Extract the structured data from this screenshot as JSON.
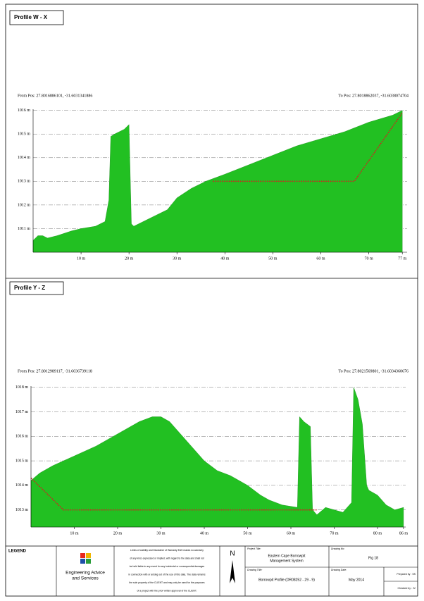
{
  "chart_data": [
    {
      "type": "area",
      "title": "Profile W - X",
      "from_pos": "From Pos: 27.8016886101, -31.6031341886",
      "to_pos": "To Pos: 27.8018862037, -31.6038074704",
      "xlim": [
        0,
        78
      ],
      "ylim": [
        1010,
        1016.05
      ],
      "xticks": [
        {
          "value": 10,
          "label": "10 m"
        },
        {
          "value": 20,
          "label": "20 m"
        },
        {
          "value": 30,
          "label": "30 m"
        },
        {
          "value": 40,
          "label": "40 m"
        },
        {
          "value": 50,
          "label": "50 m"
        },
        {
          "value": 60,
          "label": "60 m"
        },
        {
          "value": 70,
          "label": "70 m"
        },
        {
          "value": 77,
          "label": "77 m"
        }
      ],
      "yticks": [
        {
          "value": 1011,
          "label": "1011 m"
        },
        {
          "value": 1012,
          "label": "1012 m"
        },
        {
          "value": 1013,
          "label": "1013 m"
        },
        {
          "value": 1014,
          "label": "1014 m"
        },
        {
          "value": 1015,
          "label": "1015 m"
        },
        {
          "value": 1016,
          "label": "1016 m"
        }
      ],
      "grid": true,
      "series": [
        {
          "style": "area",
          "color": "#22c022",
          "x": [
            0,
            1,
            2,
            3,
            5,
            8,
            10,
            13,
            15,
            15.8,
            16.2,
            17,
            18,
            19,
            20,
            20.5,
            21,
            22,
            25,
            28,
            30,
            33,
            36,
            40,
            45,
            50,
            55,
            60,
            65,
            70,
            75,
            77
          ],
          "values": [
            1010.5,
            1010.7,
            1010.7,
            1010.6,
            1010.7,
            1010.9,
            1011.0,
            1011.1,
            1011.3,
            1012.2,
            1014.9,
            1015.0,
            1015.1,
            1015.2,
            1015.4,
            1011.2,
            1011.1,
            1011.2,
            1011.5,
            1011.8,
            1012.3,
            1012.7,
            1013.0,
            1013.3,
            1013.7,
            1014.1,
            1014.5,
            1014.8,
            1015.1,
            1015.5,
            1015.8,
            1016.0
          ]
        },
        {
          "style": "dotted",
          "color": "#d42020",
          "x": [
            37.5,
            67,
            77
          ],
          "values": [
            1013.0,
            1013.0,
            1015.9
          ]
        }
      ]
    },
    {
      "type": "area",
      "title": "Profile Y - Z",
      "from_pos": "From Pos: 27.8012989117, -31.6036739118",
      "to_pos": "To Pos: 27.8021569801, -31.6034360676",
      "xlim": [
        0,
        86.5
      ],
      "ylim": [
        1012.3,
        1018.05
      ],
      "xticks": [
        {
          "value": 10,
          "label": "10 m"
        },
        {
          "value": 20,
          "label": "20 m"
        },
        {
          "value": 30,
          "label": "30 m"
        },
        {
          "value": 40,
          "label": "40 m"
        },
        {
          "value": 50,
          "label": "50 m"
        },
        {
          "value": 60,
          "label": "60 m"
        },
        {
          "value": 70,
          "label": "70 m"
        },
        {
          "value": 80,
          "label": "80 m"
        },
        {
          "value": 86,
          "label": "86 m"
        }
      ],
      "yticks": [
        {
          "value": 1013,
          "label": "1013 m"
        },
        {
          "value": 1014,
          "label": "1014 m"
        },
        {
          "value": 1015,
          "label": "1015 m"
        },
        {
          "value": 1016,
          "label": "1016 m"
        },
        {
          "value": 1017,
          "label": "1017 m"
        },
        {
          "value": 1018,
          "label": "1018 m"
        }
      ],
      "grid": true,
      "series": [
        {
          "style": "area",
          "color": "#22c022",
          "x": [
            0,
            2,
            5,
            10,
            15,
            20,
            25,
            28,
            30,
            32,
            35,
            38,
            40,
            43,
            46,
            48,
            50,
            53,
            55,
            58,
            61.5,
            62,
            63,
            64.5,
            65,
            66,
            68,
            70,
            72,
            74,
            74.5,
            75.5,
            76.5,
            77.5,
            78,
            80,
            82,
            84,
            86
          ],
          "values": [
            1014.2,
            1014.5,
            1014.8,
            1015.2,
            1015.6,
            1016.1,
            1016.6,
            1016.8,
            1016.8,
            1016.6,
            1016.0,
            1015.4,
            1015.0,
            1014.6,
            1014.4,
            1014.2,
            1014.0,
            1013.6,
            1013.4,
            1013.2,
            1013.1,
            1016.8,
            1016.6,
            1016.4,
            1013.0,
            1012.8,
            1013.1,
            1013.0,
            1012.9,
            1013.3,
            1018.0,
            1017.5,
            1016.5,
            1014.0,
            1013.8,
            1013.6,
            1013.2,
            1013.0,
            1013.1
          ]
        },
        {
          "style": "dotted",
          "color": "#d42020",
          "x": [
            0,
            7.5,
            66
          ],
          "values": [
            1014.3,
            1013.0,
            1013.0
          ]
        }
      ]
    }
  ],
  "footer": {
    "legend": "LEGEND",
    "company": [
      "Engineering Advice",
      "and Services"
    ],
    "disclaimer": [
      "Limits of Liability and Disclaimer of Warranty EAS makes no warranty",
      "of any kind, expressed or implied, with regard to the data and shall not",
      "be held liable in any event for any incidental or consequential damages",
      "in connection with or arising out of the use of this data. The data remains",
      "the sole property of the CLIENT and may only be used for the purposes",
      "of a project with the prior written approval of the CLIENT."
    ],
    "north": "N",
    "project_label": "Project Title:",
    "project": [
      "Eastern Cape Borrowpit",
      "Management System"
    ],
    "drawing_no_label": "Drawing No:",
    "drawing_no": "Fig 18",
    "drawing_title_label": "Drawing Title:",
    "drawing_title": "Borrowpit Profile (DR08252 - 29 - 9)",
    "drawing_date_label": "Drawing Date:",
    "drawing_date": "May 2014",
    "prepared": "Prepared by : SS",
    "checked": "Checked by : JV"
  }
}
